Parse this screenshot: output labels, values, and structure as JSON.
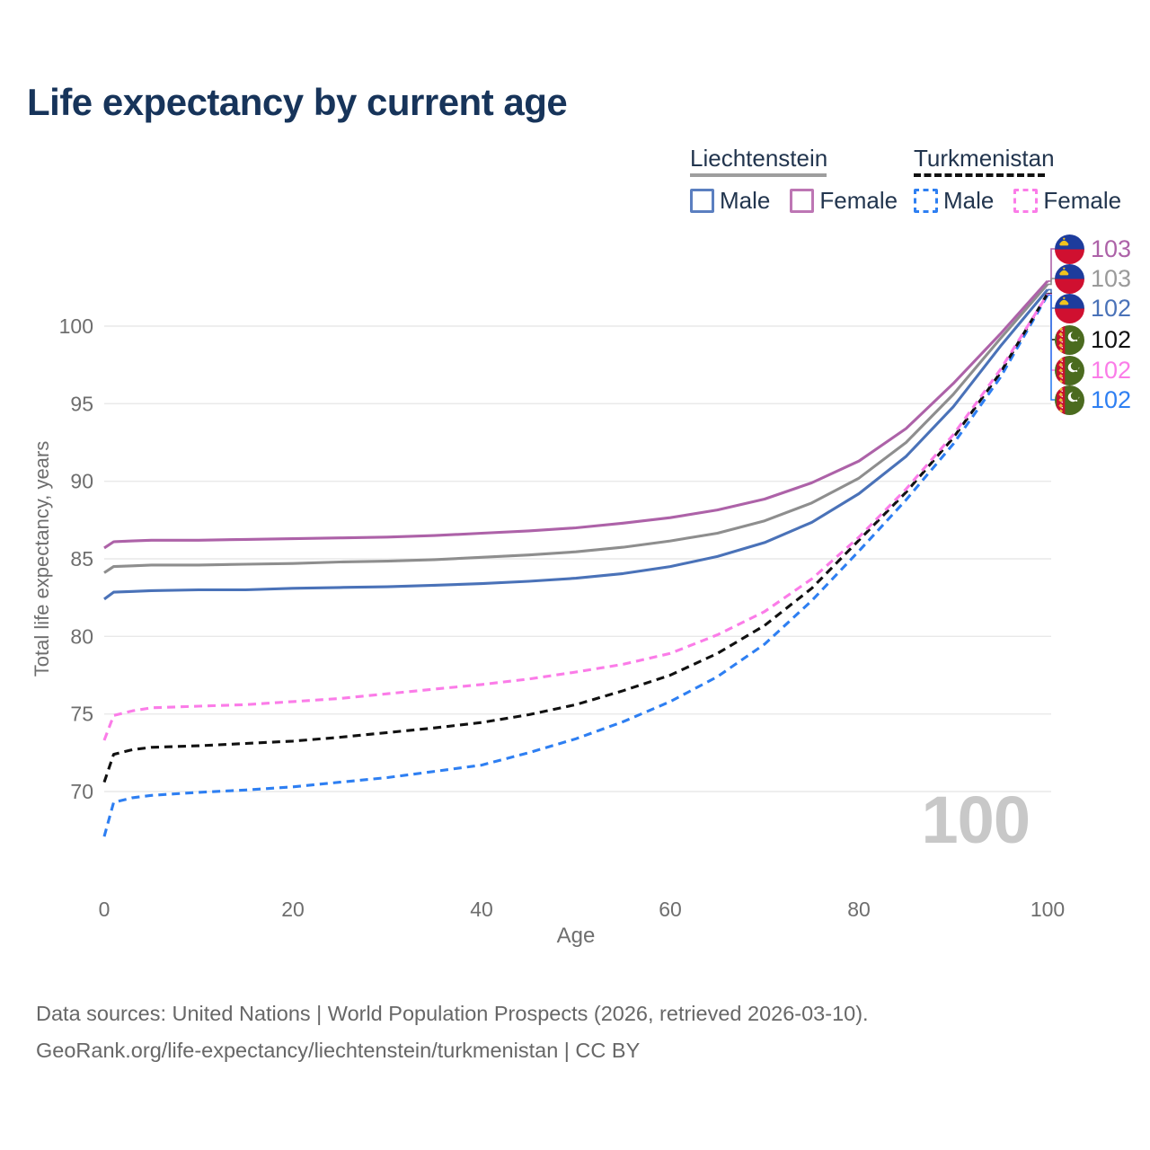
{
  "title": "Life expectancy by current age",
  "legend": {
    "groups": [
      {
        "label": "Liechtenstein",
        "underline_style": "solid",
        "underline_color": "#9e9e9e",
        "items": [
          {
            "label": "Male",
            "color": "#5b7fc0",
            "dash": false
          },
          {
            "label": "Female",
            "color": "#bd76b4",
            "dash": false
          }
        ]
      },
      {
        "label": "Turkmenistan",
        "underline_style": "dashed",
        "underline_color": "#111111",
        "items": [
          {
            "label": "Male",
            "color": "#2e7ff2",
            "dash": true
          },
          {
            "label": "Female",
            "color": "#fb7ce8",
            "dash": true
          }
        ]
      }
    ]
  },
  "watermark": "100",
  "footer": {
    "line1": "Data sources: United Nations | World Population Prospects (2026, retrieved 2026-03-10).",
    "line2": "GeoRank.org/life-expectancy/liechtenstein/turkmenistan | CC BY"
  },
  "chart_data": {
    "type": "line",
    "title": "Life expectancy by current age",
    "xlabel": "Age",
    "ylabel": "Total life expectancy, years",
    "x_ticks": [
      0,
      20,
      40,
      60,
      80,
      100
    ],
    "y_ticks": [
      70,
      75,
      80,
      85,
      90,
      95,
      100
    ],
    "xlim": [
      0,
      100
    ],
    "ylim": [
      66.5,
      103.5
    ],
    "grid": "horizontal",
    "legend_position": "top-right",
    "series": [
      {
        "id": "liechtenstein-female",
        "country": "Liechtenstein",
        "sex": "Female",
        "style": "solid",
        "color": "#ad62a8",
        "label_color": "#ad62a8",
        "flag": "li",
        "row": 0,
        "end_value": 103,
        "points": [
          [
            0,
            85.7
          ],
          [
            1,
            86.1
          ],
          [
            3,
            86.15
          ],
          [
            5,
            86.2
          ],
          [
            10,
            86.2
          ],
          [
            15,
            86.25
          ],
          [
            20,
            86.3
          ],
          [
            25,
            86.35
          ],
          [
            30,
            86.4
          ],
          [
            35,
            86.5
          ],
          [
            40,
            86.65
          ],
          [
            45,
            86.8
          ],
          [
            50,
            87.0
          ],
          [
            55,
            87.3
          ],
          [
            60,
            87.65
          ],
          [
            65,
            88.15
          ],
          [
            70,
            88.85
          ],
          [
            75,
            89.9
          ],
          [
            80,
            91.3
          ],
          [
            85,
            93.4
          ],
          [
            90,
            96.3
          ],
          [
            95,
            99.5
          ],
          [
            100,
            102.9
          ]
        ]
      },
      {
        "id": "liechtenstein-all",
        "country": "Liechtenstein",
        "sex": "All",
        "style": "solid",
        "color": "#8e8e8e",
        "label_color": "#9a9a9a",
        "flag": "li",
        "row": 1,
        "end_value": 103,
        "points": [
          [
            0,
            84.1
          ],
          [
            1,
            84.5
          ],
          [
            3,
            84.55
          ],
          [
            5,
            84.6
          ],
          [
            10,
            84.6
          ],
          [
            15,
            84.65
          ],
          [
            20,
            84.7
          ],
          [
            25,
            84.8
          ],
          [
            30,
            84.85
          ],
          [
            35,
            84.95
          ],
          [
            40,
            85.1
          ],
          [
            45,
            85.25
          ],
          [
            50,
            85.45
          ],
          [
            55,
            85.75
          ],
          [
            60,
            86.15
          ],
          [
            65,
            86.65
          ],
          [
            70,
            87.45
          ],
          [
            75,
            88.6
          ],
          [
            80,
            90.2
          ],
          [
            85,
            92.5
          ],
          [
            90,
            95.6
          ],
          [
            95,
            99.2
          ],
          [
            100,
            102.7
          ]
        ]
      },
      {
        "id": "liechtenstein-male",
        "country": "Liechtenstein",
        "sex": "Male",
        "style": "solid",
        "color": "#4a72b8",
        "label_color": "#4a72b8",
        "flag": "li",
        "row": 2,
        "end_value": 102,
        "points": [
          [
            0,
            82.4
          ],
          [
            1,
            82.85
          ],
          [
            3,
            82.9
          ],
          [
            5,
            82.95
          ],
          [
            10,
            83.0
          ],
          [
            15,
            83.0
          ],
          [
            20,
            83.1
          ],
          [
            25,
            83.15
          ],
          [
            30,
            83.2
          ],
          [
            35,
            83.3
          ],
          [
            40,
            83.4
          ],
          [
            45,
            83.55
          ],
          [
            50,
            83.75
          ],
          [
            55,
            84.05
          ],
          [
            60,
            84.5
          ],
          [
            65,
            85.15
          ],
          [
            70,
            86.05
          ],
          [
            75,
            87.35
          ],
          [
            80,
            89.2
          ],
          [
            85,
            91.6
          ],
          [
            90,
            94.8
          ],
          [
            95,
            98.7
          ],
          [
            100,
            102.35
          ]
        ]
      },
      {
        "id": "turkmenistan-all",
        "country": "Turkmenistan",
        "sex": "All",
        "style": "dashed",
        "color": "#111111",
        "label_color": "#111111",
        "flag": "tm",
        "row": 3,
        "end_value": 102,
        "points": [
          [
            0,
            70.6
          ],
          [
            1,
            72.4
          ],
          [
            3,
            72.7
          ],
          [
            5,
            72.85
          ],
          [
            10,
            72.95
          ],
          [
            15,
            73.1
          ],
          [
            20,
            73.25
          ],
          [
            25,
            73.5
          ],
          [
            30,
            73.8
          ],
          [
            35,
            74.1
          ],
          [
            40,
            74.45
          ],
          [
            45,
            74.95
          ],
          [
            50,
            75.6
          ],
          [
            55,
            76.5
          ],
          [
            60,
            77.5
          ],
          [
            65,
            78.9
          ],
          [
            70,
            80.7
          ],
          [
            75,
            83.1
          ],
          [
            80,
            86.2
          ],
          [
            85,
            89.3
          ],
          [
            90,
            92.8
          ],
          [
            95,
            97.0
          ],
          [
            100,
            102.1
          ]
        ]
      },
      {
        "id": "turkmenistan-female",
        "country": "Turkmenistan",
        "sex": "Female",
        "style": "dashed",
        "color": "#fb7ce8",
        "label_color": "#fb7ce8",
        "flag": "tm",
        "row": 4,
        "end_value": 102,
        "points": [
          [
            0,
            73.3
          ],
          [
            1,
            74.9
          ],
          [
            3,
            75.2
          ],
          [
            5,
            75.4
          ],
          [
            10,
            75.5
          ],
          [
            15,
            75.6
          ],
          [
            20,
            75.8
          ],
          [
            25,
            76.0
          ],
          [
            30,
            76.3
          ],
          [
            35,
            76.6
          ],
          [
            40,
            76.9
          ],
          [
            45,
            77.25
          ],
          [
            50,
            77.7
          ],
          [
            55,
            78.2
          ],
          [
            60,
            78.9
          ],
          [
            65,
            80.1
          ],
          [
            70,
            81.6
          ],
          [
            75,
            83.7
          ],
          [
            80,
            86.4
          ],
          [
            85,
            89.5
          ],
          [
            90,
            93.0
          ],
          [
            95,
            97.2
          ],
          [
            100,
            102.05
          ]
        ]
      },
      {
        "id": "turkmenistan-male",
        "country": "Turkmenistan",
        "sex": "Male",
        "style": "dashed",
        "color": "#2e7ff2",
        "label_color": "#2e7ff2",
        "flag": "tm",
        "row": 5,
        "end_value": 102,
        "points": [
          [
            0,
            67.1
          ],
          [
            1,
            69.3
          ],
          [
            3,
            69.6
          ],
          [
            5,
            69.75
          ],
          [
            10,
            69.95
          ],
          [
            15,
            70.1
          ],
          [
            20,
            70.3
          ],
          [
            25,
            70.6
          ],
          [
            30,
            70.9
          ],
          [
            35,
            71.3
          ],
          [
            40,
            71.7
          ],
          [
            45,
            72.5
          ],
          [
            50,
            73.4
          ],
          [
            55,
            74.5
          ],
          [
            60,
            75.8
          ],
          [
            65,
            77.4
          ],
          [
            70,
            79.5
          ],
          [
            75,
            82.3
          ],
          [
            80,
            85.5
          ],
          [
            85,
            88.8
          ],
          [
            90,
            92.4
          ],
          [
            95,
            96.7
          ],
          [
            100,
            102.0
          ]
        ]
      }
    ]
  }
}
